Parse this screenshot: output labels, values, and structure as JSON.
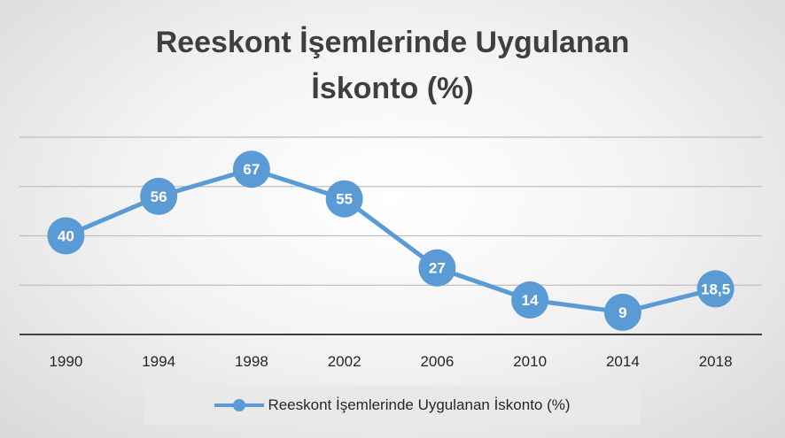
{
  "chart_data": {
    "type": "line",
    "title": "Reeskont İşemlerinde Uygulanan İskonto (%)",
    "title_lines": [
      "Reeskont İşemlerinde Uygulanan",
      "İskonto (%)"
    ],
    "categories": [
      "1990",
      "1994",
      "1998",
      "2002",
      "2006",
      "2010",
      "2014",
      "2018"
    ],
    "series": [
      {
        "name": "Reeskont İşemlerinde Uygulanan İskonto (%)",
        "values": [
          40,
          56,
          67,
          55,
          27,
          14,
          9,
          18.5
        ],
        "labels": [
          "40",
          "56",
          "67",
          "55",
          "27",
          "14",
          "9",
          "18,5"
        ],
        "color": "#5b9bd5"
      }
    ],
    "ylim": [
      0,
      80
    ],
    "y_gridlines": [
      0,
      20,
      40,
      60,
      80
    ],
    "grid": true,
    "legend_position": "bottom",
    "xlabel": "",
    "ylabel": ""
  }
}
